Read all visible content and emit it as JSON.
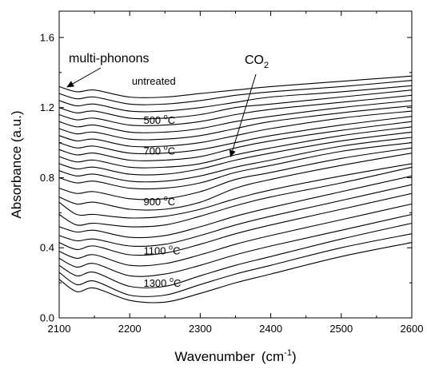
{
  "chart_data": {
    "type": "line",
    "xlabel": "Wavenumber",
    "xlabel_unit_base": "cm",
    "xlabel_unit_exp": "-1",
    "ylabel": "Absorbance (a.u.)",
    "xlim": [
      2100,
      2600
    ],
    "ylim": [
      0.0,
      1.75
    ],
    "x_ticks": [
      2100,
      2200,
      2300,
      2400,
      2500,
      2600
    ],
    "y_ticks": [
      0.0,
      0.4,
      0.8,
      1.2,
      1.6
    ],
    "x_tick_labels": [
      "2100",
      "2200",
      "2300",
      "2400",
      "2500",
      "2600"
    ],
    "y_tick_labels": [
      "0.0",
      "0.4",
      "0.8",
      "1.2",
      "1.6"
    ],
    "grid": false,
    "series": [
      {
        "x": [
          2100,
          2125,
          2150,
          2200,
          2250,
          2300,
          2350,
          2400,
          2500,
          2600
        ],
        "y": [
          1.32,
          1.29,
          1.3,
          1.26,
          1.26,
          1.28,
          1.3,
          1.32,
          1.35,
          1.38
        ]
      },
      {
        "x": [
          2100,
          2125,
          2150,
          2200,
          2250,
          2300,
          2350,
          2400,
          2500,
          2600
        ],
        "y": [
          1.28,
          1.25,
          1.26,
          1.22,
          1.22,
          1.24,
          1.27,
          1.29,
          1.32,
          1.355
        ]
      },
      {
        "x": [
          2100,
          2125,
          2150,
          2200,
          2250,
          2300,
          2350,
          2400,
          2500,
          2600
        ],
        "y": [
          1.24,
          1.21,
          1.22,
          1.18,
          1.18,
          1.2,
          1.23,
          1.26,
          1.29,
          1.325
        ]
      },
      {
        "x": [
          2100,
          2125,
          2150,
          2200,
          2250,
          2300,
          2350,
          2400,
          2500,
          2600
        ],
        "y": [
          1.2,
          1.17,
          1.18,
          1.14,
          1.14,
          1.16,
          1.2,
          1.22,
          1.26,
          1.3
        ]
      },
      {
        "x": [
          2100,
          2125,
          2150,
          2200,
          2250,
          2300,
          2350,
          2400,
          2500,
          2600
        ],
        "y": [
          1.16,
          1.13,
          1.14,
          1.1,
          1.1,
          1.12,
          1.16,
          1.19,
          1.23,
          1.27
        ]
      },
      {
        "x": [
          2100,
          2125,
          2150,
          2200,
          2250,
          2300,
          2350,
          2400,
          2500,
          2600
        ],
        "y": [
          1.12,
          1.09,
          1.1,
          1.06,
          1.06,
          1.08,
          1.12,
          1.15,
          1.2,
          1.24
        ]
      },
      {
        "x": [
          2100,
          2125,
          2150,
          2200,
          2250,
          2300,
          2350,
          2400,
          2500,
          2600
        ],
        "y": [
          1.08,
          1.05,
          1.06,
          1.02,
          1.02,
          1.04,
          1.08,
          1.12,
          1.17,
          1.21
        ]
      },
      {
        "x": [
          2100,
          2125,
          2150,
          2200,
          2250,
          2300,
          2350,
          2400,
          2500,
          2600
        ],
        "y": [
          1.04,
          1.01,
          1.02,
          0.98,
          0.98,
          1.0,
          1.04,
          1.08,
          1.14,
          1.18
        ]
      },
      {
        "x": [
          2100,
          2125,
          2150,
          2200,
          2250,
          2300,
          2350,
          2400,
          2500,
          2600
        ],
        "y": [
          1.0,
          0.97,
          0.98,
          0.94,
          0.94,
          0.96,
          1.0,
          1.04,
          1.1,
          1.15
        ]
      },
      {
        "x": [
          2100,
          2125,
          2150,
          2200,
          2250,
          2300,
          2350,
          2400,
          2500,
          2600
        ],
        "y": [
          0.96,
          0.93,
          0.94,
          0.9,
          0.9,
          0.92,
          0.97,
          1.01,
          1.07,
          1.12
        ]
      },
      {
        "x": [
          2100,
          2125,
          2150,
          2200,
          2250,
          2300,
          2350,
          2400,
          2500,
          2600
        ],
        "y": [
          0.92,
          0.89,
          0.9,
          0.86,
          0.86,
          0.88,
          0.93,
          0.97,
          1.04,
          1.09
        ]
      },
      {
        "x": [
          2100,
          2125,
          2150,
          2200,
          2250,
          2300,
          2350,
          2400,
          2500,
          2600
        ],
        "y": [
          0.88,
          0.85,
          0.86,
          0.82,
          0.82,
          0.85,
          0.9,
          0.94,
          1.01,
          1.06
        ]
      },
      {
        "x": [
          2100,
          2125,
          2150,
          2200,
          2250,
          2300,
          2350,
          2400,
          2500,
          2600
        ],
        "y": [
          0.84,
          0.81,
          0.82,
          0.78,
          0.78,
          0.81,
          0.86,
          0.9,
          0.98,
          1.03
        ]
      },
      {
        "x": [
          2100,
          2125,
          2150,
          2200,
          2250,
          2300,
          2350,
          2400,
          2500,
          2600
        ],
        "y": [
          0.8,
          0.77,
          0.78,
          0.74,
          0.74,
          0.77,
          0.83,
          0.87,
          0.95,
          1.0
        ]
      },
      {
        "x": [
          2100,
          2125,
          2150,
          2200,
          2250,
          2300,
          2350,
          2400,
          2500,
          2600
        ],
        "y": [
          0.74,
          0.71,
          0.72,
          0.68,
          0.68,
          0.72,
          0.79,
          0.83,
          0.91,
          0.97
        ]
      },
      {
        "x": [
          2100,
          2125,
          2150,
          2200,
          2250,
          2300,
          2350,
          2400,
          2500,
          2600
        ],
        "y": [
          0.69,
          0.65,
          0.66,
          0.62,
          0.62,
          0.66,
          0.74,
          0.79,
          0.87,
          0.94
        ]
      },
      {
        "x": [
          2100,
          2125,
          2150,
          2200,
          2250,
          2300,
          2350,
          2400,
          2500,
          2600
        ],
        "y": [
          0.66,
          0.59,
          0.59,
          0.57,
          0.58,
          0.62,
          0.68,
          0.73,
          0.81,
          0.88
        ]
      },
      {
        "x": [
          2100,
          2125,
          2150,
          2200,
          2250,
          2300,
          2350,
          2400,
          2500,
          2600
        ],
        "y": [
          0.59,
          0.53,
          0.54,
          0.52,
          0.53,
          0.58,
          0.64,
          0.69,
          0.77,
          0.86
        ]
      },
      {
        "x": [
          2100,
          2125,
          2150,
          2200,
          2250,
          2300,
          2350,
          2400,
          2500,
          2600
        ],
        "y": [
          0.52,
          0.49,
          0.5,
          0.46,
          0.47,
          0.52,
          0.58,
          0.63,
          0.72,
          0.81
        ]
      },
      {
        "x": [
          2100,
          2125,
          2150,
          2200,
          2250,
          2300,
          2350,
          2400,
          2500,
          2600
        ],
        "y": [
          0.47,
          0.44,
          0.45,
          0.41,
          0.42,
          0.47,
          0.53,
          0.58,
          0.67,
          0.76
        ]
      },
      {
        "x": [
          2100,
          2125,
          2150,
          2200,
          2250,
          2300,
          2350,
          2400,
          2500,
          2600
        ],
        "y": [
          0.43,
          0.39,
          0.41,
          0.36,
          0.37,
          0.42,
          0.48,
          0.53,
          0.62,
          0.71
        ]
      },
      {
        "x": [
          2100,
          2125,
          2150,
          2200,
          2250,
          2300,
          2350,
          2400,
          2500,
          2600
        ],
        "y": [
          0.38,
          0.34,
          0.36,
          0.3,
          0.31,
          0.36,
          0.42,
          0.47,
          0.56,
          0.65
        ]
      },
      {
        "x": [
          2100,
          2125,
          2150,
          2200,
          2250,
          2300,
          2350,
          2400,
          2500,
          2600
        ],
        "y": [
          0.34,
          0.29,
          0.31,
          0.24,
          0.25,
          0.3,
          0.36,
          0.41,
          0.5,
          0.59
        ]
      },
      {
        "x": [
          2100,
          2125,
          2150,
          2200,
          2250,
          2300,
          2350,
          2400,
          2500,
          2600
        ],
        "y": [
          0.3,
          0.24,
          0.26,
          0.18,
          0.18,
          0.24,
          0.3,
          0.35,
          0.45,
          0.54
        ]
      },
      {
        "x": [
          2100,
          2125,
          2150,
          2200,
          2250,
          2300,
          2350,
          2400,
          2500,
          2600
        ],
        "y": [
          0.26,
          0.19,
          0.21,
          0.13,
          0.13,
          0.19,
          0.25,
          0.3,
          0.4,
          0.48
        ]
      },
      {
        "x": [
          2100,
          2125,
          2150,
          2200,
          2250,
          2300,
          2350,
          2400,
          2500,
          2600
        ],
        "y": [
          0.22,
          0.15,
          0.17,
          0.1,
          0.09,
          0.14,
          0.2,
          0.25,
          0.35,
          0.43
        ]
      }
    ],
    "annotations": {
      "multi_phonons": {
        "text": "multi-phonons",
        "x": 2150,
        "y": 1.32
      },
      "co2_base": "CO",
      "co2_sub": "2",
      "co2_target": {
        "x": 2345,
        "y": 0.92
      },
      "curve_labels": [
        {
          "num": "untreated",
          "unit": "",
          "x": 2237,
          "y": 1.35
        },
        {
          "num": "500 ",
          "unit": "C",
          "x": 2240,
          "y": 1.125
        },
        {
          "num": "700 ",
          "unit": "C",
          "x": 2240,
          "y": 0.95
        },
        {
          "num": "900 ",
          "unit": "C",
          "x": 2240,
          "y": 0.66
        },
        {
          "num": "1100 ",
          "unit": "C",
          "x": 2240,
          "y": 0.38
        },
        {
          "num": "1300 ",
          "unit": "C",
          "x": 2240,
          "y": 0.195
        }
      ],
      "degree_symbol": "o"
    }
  }
}
